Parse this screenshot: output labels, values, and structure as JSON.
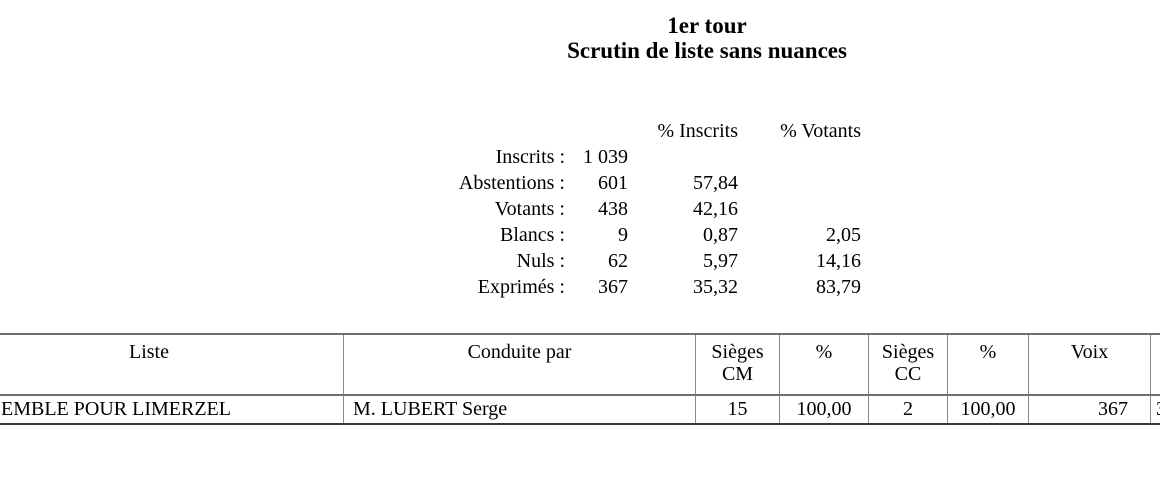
{
  "title": {
    "line1": "1er tour",
    "line2": "Scrutin de liste sans nuances"
  },
  "stats": {
    "col_headers": {
      "inscrits": "% Inscrits",
      "votants": "% Votants"
    },
    "rows": [
      {
        "label": "Inscrits :",
        "value": "1 039",
        "pct_inscrits": "",
        "pct_votants": ""
      },
      {
        "label": "Abstentions :",
        "value": "601",
        "pct_inscrits": "57,84",
        "pct_votants": ""
      },
      {
        "label": "Votants :",
        "value": "438",
        "pct_inscrits": "42,16",
        "pct_votants": ""
      },
      {
        "label": "Blancs :",
        "value": "9",
        "pct_inscrits": "0,87",
        "pct_votants": "2,05"
      },
      {
        "label": "Nuls :",
        "value": "62",
        "pct_inscrits": "5,97",
        "pct_votants": "14,16"
      },
      {
        "label": "Exprimés :",
        "value": "367",
        "pct_inscrits": "35,32",
        "pct_votants": "83,79"
      }
    ]
  },
  "results_table": {
    "headers": {
      "liste": "Liste",
      "conduite_par": "Conduite par",
      "sieges_cm_line1": "Sièges",
      "sieges_cm_line2": "CM",
      "pct_cm": "%",
      "sieges_cc_line1": "Sièges",
      "sieges_cc_line2": "CC",
      "pct_cc": "%",
      "voix": "Voix",
      "partial_right": ""
    },
    "rows": [
      {
        "liste": "EMBLE POUR LIMERZEL",
        "conduite_par": "M. LUBERT Serge",
        "sieges_cm": "15",
        "pct_cm": "100,00",
        "sieges_cc": "2",
        "pct_cc": "100,00",
        "voix": "367",
        "partial_right": "3"
      }
    ]
  }
}
